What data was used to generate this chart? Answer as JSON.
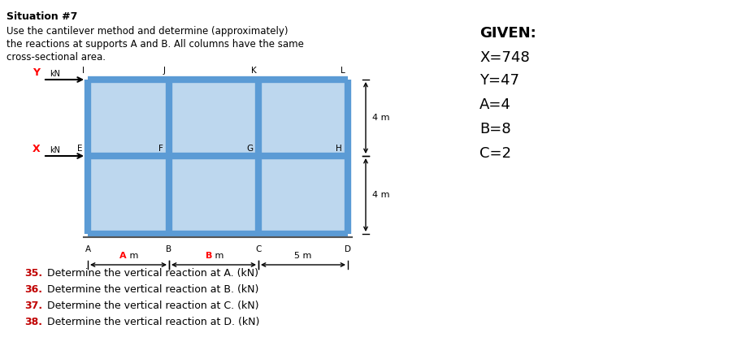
{
  "title": "Situation #7",
  "description_line1": "Use the cantilever method and determine (approximately)",
  "description_line2": "the reactions at supports A and B. All columns have the same",
  "description_line3": "cross-sectional area.",
  "given_title": "GIVEN:",
  "given_X": "X=748",
  "given_Y": "Y=47",
  "given_A": "A=4",
  "given_B": "B=8",
  "given_C": "C=2",
  "questions": [
    "35. Determine the vertical reaction at A. (kN)",
    "36. Determine the vertical reaction at B. (kN)",
    "37. Determine the vertical reaction at C. (kN)",
    "38. Determine the vertical reaction at D. (kN)"
  ],
  "frame_color": "#5B9BD5",
  "frame_fill": "#BDD7EE",
  "background_color": "#ffffff",
  "col_labels_top": [
    "I",
    "J",
    "K",
    "L"
  ],
  "col_labels_mid": [
    "E",
    "F",
    "G",
    "H"
  ],
  "col_labels_bot": [
    "A",
    "B",
    "C",
    "D"
  ]
}
